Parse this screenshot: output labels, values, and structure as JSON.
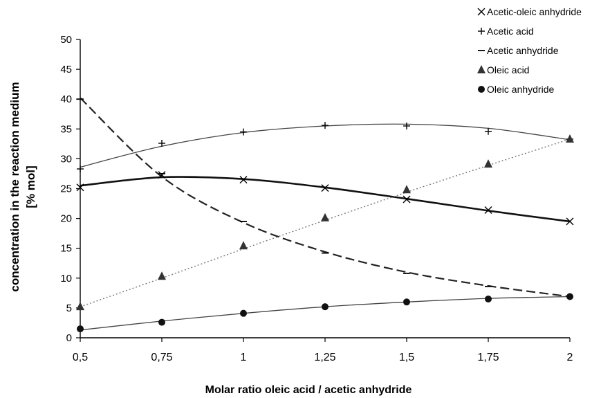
{
  "chart_data": {
    "type": "scatter",
    "xlabel": "Molar ratio oleic acid / acetic anhydride",
    "ylabel_lines": [
      "concentration in the reaction medium",
      "[% mol]"
    ],
    "x_ticks": [
      0.5,
      0.75,
      1,
      1.25,
      1.5,
      1.75,
      2
    ],
    "x_tick_labels": [
      "0,5",
      "0,75",
      "1",
      "1,25",
      "1,5",
      "1,75",
      "2"
    ],
    "y_ticks": [
      0,
      5,
      10,
      15,
      20,
      25,
      30,
      35,
      40,
      45,
      50
    ],
    "y_tick_labels": [
      "0",
      "5",
      "10",
      "15",
      "20",
      "25",
      "30",
      "35",
      "40",
      "45",
      "50"
    ],
    "xlim": [
      0.5,
      2
    ],
    "ylim": [
      0,
      50
    ],
    "grid": false,
    "legend_position": "top-right",
    "series": [
      {
        "name": "Acetic-oleic anhydride",
        "marker": "x",
        "line": "solid-thick",
        "x": [
          0.5,
          0.75,
          1,
          1.25,
          1.5,
          1.75,
          2
        ],
        "y": [
          25.2,
          27.3,
          26.5,
          25.1,
          23.2,
          21.4,
          19.5
        ],
        "curve_y": [
          25.5,
          26.9,
          26.6,
          25.2,
          23.3,
          21.3,
          19.5
        ]
      },
      {
        "name": "Acetic acid",
        "marker": "+",
        "line": "solid-thin",
        "x": [
          0.5,
          0.75,
          1,
          1.25,
          1.5,
          1.75,
          2
        ],
        "y": [
          28.3,
          32.6,
          34.5,
          35.6,
          35.5,
          34.6,
          33.3
        ],
        "curve_y": [
          28.6,
          32.1,
          34.4,
          35.5,
          35.8,
          35.1,
          33.2
        ]
      },
      {
        "name": "Acetic anhydride",
        "marker": "dash",
        "line": "dashed",
        "x": [
          0.5,
          0.75,
          1,
          1.25,
          1.5,
          1.75,
          2
        ],
        "y": [
          40.0,
          27.5,
          19.5,
          14.2,
          10.8,
          8.6,
          6.9
        ],
        "curve_y": [
          40.2,
          27.0,
          19.3,
          14.4,
          11.0,
          8.7,
          6.9
        ]
      },
      {
        "name": "Oleic acid",
        "marker": "triangle",
        "line": "dotted",
        "x": [
          0.5,
          0.75,
          1,
          1.25,
          1.5,
          1.75,
          2
        ],
        "y": [
          5.2,
          10.3,
          15.4,
          20.1,
          24.8,
          29.1,
          33.3
        ],
        "curve_y": [
          5.2,
          10.0,
          14.9,
          19.7,
          24.4,
          28.9,
          33.3
        ]
      },
      {
        "name": "Oleic anhydride",
        "marker": "circle",
        "line": "solid-thin",
        "x": [
          0.5,
          0.75,
          1,
          1.25,
          1.5,
          1.75,
          2
        ],
        "y": [
          1.5,
          2.6,
          4.1,
          5.2,
          6.0,
          6.5,
          6.9
        ],
        "curve_y": [
          1.3,
          2.8,
          4.1,
          5.2,
          6.0,
          6.6,
          6.9
        ]
      }
    ]
  }
}
